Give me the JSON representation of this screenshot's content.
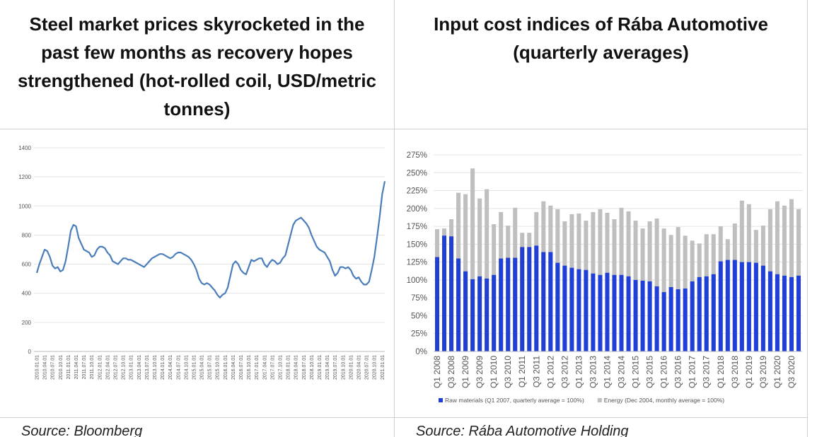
{
  "chart_data": [
    {
      "type": "line",
      "title": "Steel market prices skyrocketed in the past few months as recovery hopes strengthened (hot-rolled coil, USD/metric tonnes)",
      "source": "Source: Bloomberg",
      "color": "#4a7ebb",
      "grid": true,
      "ylim": [
        0,
        1400
      ],
      "yticks": [
        0,
        200,
        400,
        600,
        800,
        1000,
        1200,
        1400
      ],
      "categories": [
        "2010.01.01",
        null,
        null,
        "2010.04.01",
        null,
        null,
        "2010.07.01",
        null,
        null,
        "2010.10.01",
        null,
        null,
        "2011.01.01",
        null,
        null,
        "2011.04.01",
        null,
        null,
        "2011.07.01",
        null,
        null,
        "2011.10.01",
        null,
        null,
        "2012.01.01",
        null,
        null,
        "2012.04.01",
        null,
        null,
        "2012.07.01",
        null,
        null,
        "2012.10.01",
        null,
        null,
        "2013.01.01",
        null,
        null,
        "2013.04.01",
        null,
        null,
        "2013.07.01",
        null,
        null,
        "2013.10.01",
        null,
        null,
        "2014.01.01",
        null,
        null,
        "2014.04.01",
        null,
        null,
        "2014.07.01",
        null,
        null,
        "2014.10.01",
        null,
        null,
        "2015.01.01",
        null,
        null,
        "2015.04.01",
        null,
        null,
        "2015.07.01",
        null,
        null,
        "2015.10.01",
        null,
        null,
        "2016.01.01",
        null,
        null,
        "2016.04.01",
        null,
        null,
        "2016.07.01",
        null,
        null,
        "2016.10.01",
        null,
        null,
        "2017.01.01",
        null,
        null,
        "2017.04.01",
        null,
        null,
        "2017.07.01",
        null,
        null,
        "2017.10.01",
        null,
        null,
        "2018.01.01",
        null,
        null,
        "2018.04.01",
        null,
        null,
        "2018.07.01",
        null,
        null,
        "2018.10.01",
        null,
        null,
        "2019.01.01",
        null,
        null,
        "2019.04.01",
        null,
        null,
        "2019.07.01",
        null,
        null,
        "2019.10.01",
        null,
        null,
        "2020.01.01",
        null,
        null,
        "2020.04.01",
        null,
        null,
        "2020.07.01",
        null,
        null,
        "2020.10.01",
        null,
        null,
        "2021.01.01",
        null
      ],
      "values": [
        540,
        600,
        650,
        700,
        690,
        650,
        590,
        570,
        580,
        550,
        560,
        620,
        720,
        830,
        870,
        860,
        780,
        740,
        700,
        690,
        680,
        650,
        660,
        700,
        720,
        720,
        710,
        680,
        660,
        620,
        610,
        600,
        620,
        640,
        640,
        630,
        630,
        620,
        610,
        600,
        590,
        580,
        600,
        620,
        640,
        650,
        660,
        670,
        670,
        660,
        650,
        640,
        650,
        670,
        680,
        680,
        670,
        660,
        650,
        630,
        600,
        560,
        500,
        470,
        460,
        470,
        460,
        440,
        420,
        390,
        370,
        390,
        400,
        440,
        520,
        600,
        620,
        600,
        560,
        540,
        530,
        580,
        630,
        620,
        630,
        640,
        640,
        600,
        580,
        610,
        630,
        620,
        600,
        610,
        640,
        660,
        730,
        800,
        870,
        900,
        910,
        920,
        900,
        880,
        850,
        800,
        760,
        720,
        700,
        690,
        680,
        650,
        620,
        560,
        520,
        540,
        580,
        580,
        570,
        580,
        560,
        520,
        500,
        510,
        480,
        460,
        460,
        480,
        560,
        650,
        780,
        920,
        1080,
        1170
      ]
    },
    {
      "type": "bar",
      "title": "Input cost indices of Rába Automotive (quarterly averages)",
      "source": "Source: Rába Automotive Holding",
      "grid": true,
      "legend": "bottom",
      "ylim": [
        0,
        275
      ],
      "yticks": [
        {
          "value": 0,
          "label": "0%"
        },
        {
          "value": 25,
          "label": "25%"
        },
        {
          "value": 50,
          "label": "50%"
        },
        {
          "value": 75,
          "label": "75%"
        },
        {
          "value": 100,
          "label": "100%"
        },
        {
          "value": 125,
          "label": "125%"
        },
        {
          "value": 150,
          "label": "150%"
        },
        {
          "value": 175,
          "label": "175%"
        },
        {
          "value": 200,
          "label": "200%"
        },
        {
          "value": 225,
          "label": "225%"
        },
        {
          "value": 250,
          "label": "250%"
        },
        {
          "value": 275,
          "label": "275%"
        }
      ],
      "categories": [
        "Q1 2008",
        null,
        "Q3 2008",
        null,
        "Q1 2009",
        null,
        "Q3 2009",
        null,
        "Q1 2010",
        null,
        "Q3 2010",
        null,
        "Q1 2011",
        null,
        "Q3 2011",
        null,
        "Q1 2012",
        null,
        "Q3 2012",
        null,
        "Q1 2013",
        null,
        "Q3 2013",
        null,
        "Q1 2014",
        null,
        "Q3 2014",
        null,
        "Q1 2015",
        null,
        "Q3 2015",
        null,
        "Q1 2016",
        null,
        "Q3 2016",
        null,
        "Q1 2017",
        null,
        "Q3 2017",
        null,
        "Q1 2018",
        null,
        "Q3 2018",
        null,
        "Q1 2019",
        null,
        "Q3 2019",
        null,
        "Q1 2020",
        null,
        "Q3 2020",
        null
      ],
      "series": [
        {
          "name": "Raw materials (Q1 2007, quarterly average = 100%)",
          "color": "#1f3fd6",
          "values": [
            132,
            162,
            161,
            130,
            112,
            101,
            105,
            102,
            107,
            130,
            131,
            131,
            146,
            146,
            148,
            139,
            139,
            124,
            120,
            117,
            115,
            114,
            109,
            107,
            110,
            107,
            107,
            105,
            100,
            99,
            98,
            91,
            83,
            90,
            87,
            88,
            98,
            104,
            105,
            108,
            126,
            128,
            128,
            125,
            125,
            124,
            120,
            112,
            108,
            106,
            104,
            106
          ]
        },
        {
          "name": "Energy (Dec 2004, monthly average = 100%)",
          "color": "#bfbfbf",
          "values": [
            171,
            172,
            185,
            222,
            220,
            256,
            214,
            227,
            178,
            195,
            176,
            201,
            166,
            166,
            195,
            210,
            204,
            199,
            182,
            192,
            193,
            183,
            195,
            199,
            194,
            185,
            201,
            196,
            183,
            172,
            182,
            186,
            172,
            163,
            174,
            162,
            155,
            151,
            164,
            164,
            175,
            157,
            179,
            211,
            206,
            170,
            176,
            199,
            210,
            204,
            213,
            199
          ]
        }
      ]
    }
  ]
}
